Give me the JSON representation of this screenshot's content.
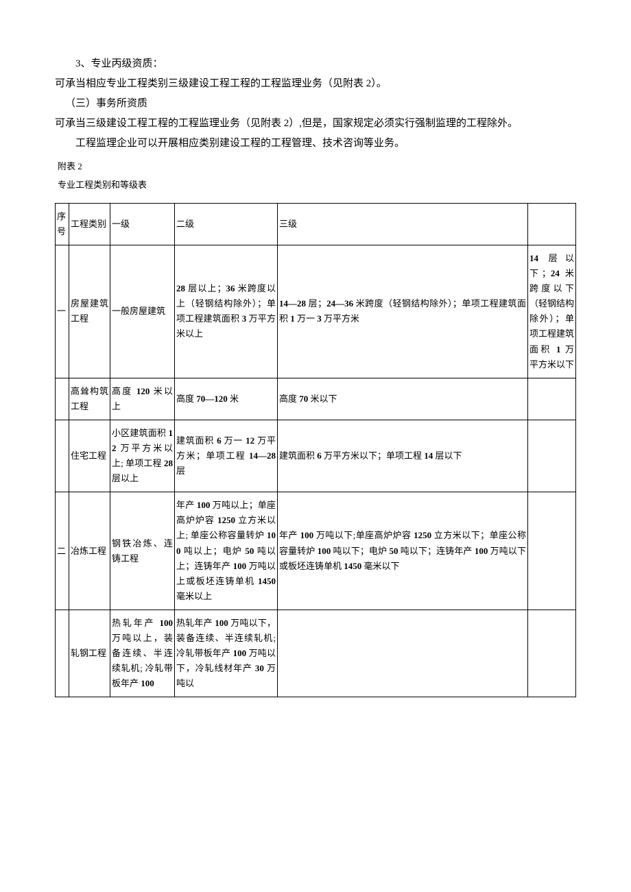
{
  "paragraphs": {
    "p1": "3、专业丙级资质：",
    "p2": "可承当相应专业工程类别三级建设工程工程的工程监理业务（见附表 2）。",
    "p3": "（三）事务所资质",
    "p4": "可承当三级建设工程工程的工程监理业务（见附表 2）,但是，国家规定必须实行强制监理的工程除外。",
    "p5": "工程监理企业可以开展相应类别建设工程的工程管理、技术咨询等业务。"
  },
  "attachment": {
    "label": "附表 2",
    "title": "专业工程类别和等级表"
  },
  "table": {
    "headers": {
      "c1": "序号",
      "c2": "工程类别",
      "c3": "一级",
      "c4": "二级",
      "c5": "三级",
      "c6": ""
    },
    "rows": [
      {
        "seq": "一",
        "cat": "房屋建筑工程",
        "l1": "一般房屋建筑",
        "l2": "28 层以上；36 米跨度以上（轻钢结构除外）；单项工程建筑面积 3 万平方米以上",
        "l3": "14—28 层；24—36 米跨度（轻钢结构除外）；单项工程建筑面积 1 万一 3 万平方米",
        "extra": "14 层以下；24 米跨度以下（轻钢结构除外）；单项工程建筑面积 1 万平方米以下"
      },
      {
        "seq": "",
        "cat": "高耸构筑工程",
        "l1": "高度 120 米以上",
        "l2": "高度 70—120 米",
        "l3": "高度 70 米以下",
        "extra": ""
      },
      {
        "seq": "",
        "cat": "住宅工程",
        "l1": "小区建筑面积 12 万平方米以上; 单项工程 28 层以上",
        "l2": "建筑面积 6 万一 12 万平方米；单项工程 14—28 层",
        "l3": "建筑面积 6 万平方米以下；单项工程 14 层以下",
        "extra": ""
      },
      {
        "seq": "二",
        "cat": "冶炼工程",
        "l1": "钢铁冶炼、连铸工程",
        "l2": "年产 100 万吨以上；单座高炉炉容 1250 立方米以上; 单座公称容量转炉 100 吨以上；电炉 50 吨以上；连铸年产 100 万吨以上或板坯连铸单机 1450 毫米以上",
        "l3": "年产 100 万吨以下;单座高炉炉容 1250 立方米以下；单座公称容量转炉 100 吨以下；电炉 50 吨以下；连铸年产 100 万吨以下或板坯连铸单机 1450 毫米以下",
        "extra": ""
      },
      {
        "seq": "",
        "cat": "轧钢工程",
        "l1": "热轧年产 100 万吨以上，装备连续、半连续轧机; 冷轧带板年产 100",
        "l2": "热轧年产 100 万吨以下，装备连续、半连续轧机; 冷轧带板年产 100 万吨以下，冷轧线材年产 30 万吨以",
        "l3": "",
        "extra": ""
      }
    ]
  }
}
